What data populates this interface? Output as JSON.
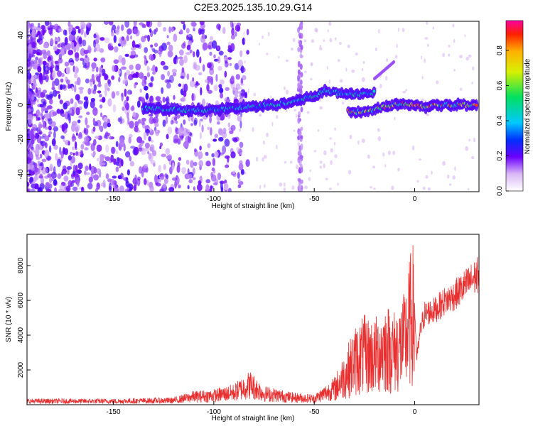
{
  "title": "C2E3.2025.135.10.29.G14",
  "chart_data": [
    {
      "type": "heatmap",
      "name": "spectrogram",
      "xlabel": "Height of straight line (km)",
      "ylabel": "Frequency (Hz)",
      "xlim": [
        -193,
        32
      ],
      "ylim": [
        -50,
        48
      ],
      "xticks": [
        -150,
        -100,
        -50,
        0
      ],
      "yticks": [
        -40,
        -20,
        0,
        20,
        40
      ],
      "colorbar": {
        "label": "Normalized spectral amplitude",
        "range": [
          0.0,
          0.97
        ],
        "ticks": [
          0.0,
          0.2,
          0.4,
          0.6,
          0.8
        ]
      },
      "ridge_upper": [
        [
          -135,
          -2
        ],
        [
          -120,
          -3
        ],
        [
          -110,
          -3
        ],
        [
          -100,
          -3
        ],
        [
          -90,
          -2
        ],
        [
          -80,
          -1
        ],
        [
          -70,
          0
        ],
        [
          -60,
          2
        ],
        [
          -50,
          5
        ],
        [
          -45,
          8
        ],
        [
          -40,
          7
        ],
        [
          -30,
          6
        ],
        [
          -20,
          7
        ]
      ],
      "ridge_lower": [
        [
          -33,
          -4
        ],
        [
          -25,
          -4
        ],
        [
          -20,
          -3
        ],
        [
          -15,
          -1
        ],
        [
          -10,
          0
        ],
        [
          -5,
          1
        ],
        [
          0,
          0
        ],
        [
          5,
          -1
        ],
        [
          10,
          0
        ],
        [
          20,
          0
        ],
        [
          30,
          0
        ]
      ],
      "harmonic_streak": [
        [
          -20,
          15
        ],
        [
          -15,
          20
        ],
        [
          -10,
          25
        ]
      ]
    },
    {
      "type": "line",
      "name": "snr",
      "xlabel": "Height of straight line (km)",
      "ylabel": "SNR (10 * v/v)",
      "xlim": [
        -193,
        32
      ],
      "ylim": [
        0,
        9800
      ],
      "xticks": [
        -150,
        -100,
        -50,
        0
      ],
      "yticks": [
        2000,
        4000,
        6000,
        8000
      ],
      "color": "#e83030",
      "envelope": [
        [
          -193,
          350
        ],
        [
          -150,
          350
        ],
        [
          -120,
          420
        ],
        [
          -110,
          800
        ],
        [
          -100,
          900
        ],
        [
          -90,
          1200
        ],
        [
          -82,
          2000
        ],
        [
          -75,
          1100
        ],
        [
          -60,
          700
        ],
        [
          -50,
          600
        ],
        [
          -40,
          1600
        ],
        [
          -35,
          3000
        ],
        [
          -30,
          4500
        ],
        [
          -25,
          5200
        ],
        [
          -20,
          5000
        ],
        [
          -15,
          6000
        ],
        [
          -10,
          5500
        ],
        [
          -5,
          6500
        ],
        [
          -1,
          9700
        ],
        [
          1,
          3000
        ],
        [
          3,
          5000
        ],
        [
          5,
          6000
        ],
        [
          10,
          6200
        ],
        [
          15,
          6800
        ],
        [
          20,
          7200
        ],
        [
          25,
          7800
        ],
        [
          32,
          8600
        ]
      ]
    }
  ]
}
